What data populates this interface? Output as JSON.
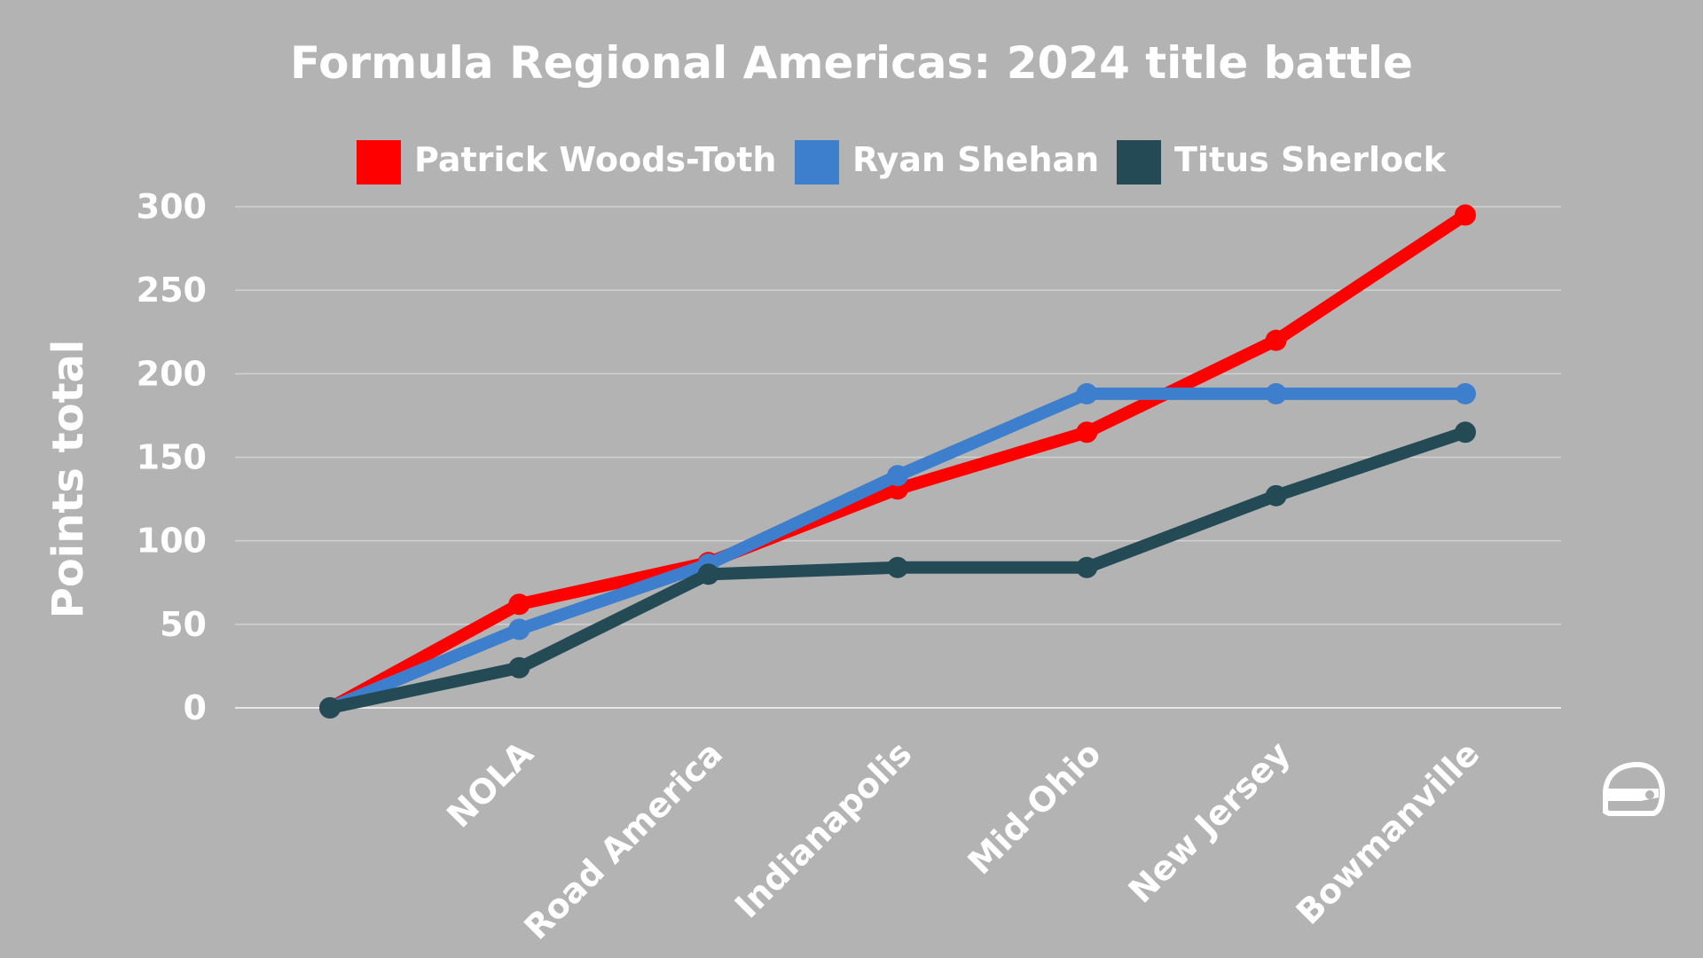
{
  "chart_data": {
    "type": "line",
    "title": "Formula Regional Americas: 2024 title battle",
    "xlabel": "",
    "ylabel": "Points total",
    "categories": [
      "",
      "NOLA",
      "Road America",
      "Indianapolis",
      "Mid-Ohio",
      "New Jersey",
      "Bowmanville"
    ],
    "ylim": [
      0,
      300
    ],
    "yticks": [
      0,
      50,
      100,
      150,
      200,
      250,
      300
    ],
    "grid": true,
    "legend_position": "top",
    "series": [
      {
        "name": "Patrick Woods-Toth",
        "color": "#ff0000",
        "values": [
          0,
          62,
          87,
          131,
          165,
          220,
          295
        ]
      },
      {
        "name": "Ryan Shehan",
        "color": "#3d7fcc",
        "values": [
          0,
          47,
          86,
          139,
          188,
          188,
          188
        ]
      },
      {
        "name": "Titus Sherlock",
        "color": "#234a55",
        "values": [
          0,
          24,
          80,
          84,
          84,
          127,
          165
        ]
      }
    ]
  },
  "background_color": "#b3b3b3",
  "logo_icon": "helmet-icon"
}
